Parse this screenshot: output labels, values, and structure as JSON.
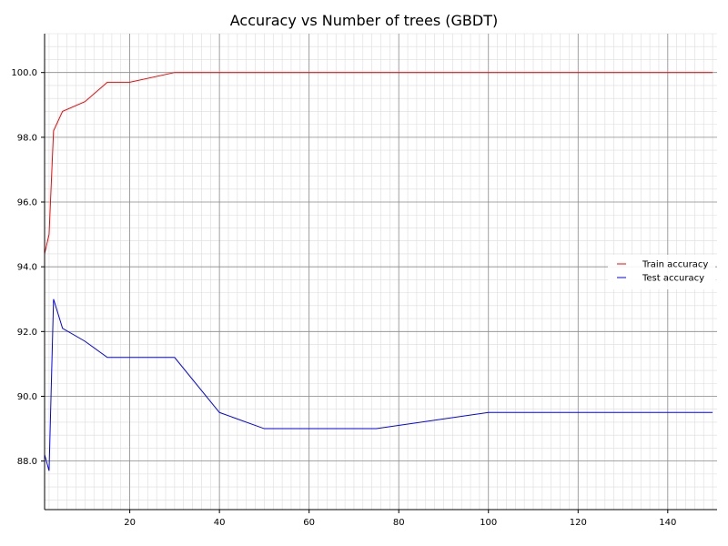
{
  "chart_data": {
    "type": "line",
    "title": "Accuracy vs Number of trees (GBDT)",
    "xlabel": "",
    "ylabel": "",
    "xlim": [
      1,
      151
    ],
    "ylim": [
      86.5,
      101.2
    ],
    "x_ticks": [
      20,
      40,
      60,
      80,
      100,
      120,
      140
    ],
    "y_ticks": [
      88.0,
      90.0,
      92.0,
      94.0,
      96.0,
      98.0,
      100.0
    ],
    "grid": "major-and-minor",
    "legend_position": "right",
    "series": [
      {
        "name": "Train accuracy",
        "color": "#ff0000",
        "x": [
          1,
          2,
          3,
          5,
          10,
          15,
          20,
          30,
          40,
          50,
          75,
          100,
          150
        ],
        "y": [
          94.4,
          95.0,
          98.2,
          98.8,
          99.1,
          99.7,
          99.7,
          100.0,
          100.0,
          100.0,
          100.0,
          100.0,
          100.0
        ]
      },
      {
        "name": "Test accuracy",
        "color": "#0000ff",
        "x": [
          1,
          2,
          3,
          5,
          10,
          15,
          20,
          30,
          40,
          50,
          75,
          100,
          150
        ],
        "y": [
          88.2,
          87.7,
          93.0,
          92.1,
          91.7,
          91.2,
          91.2,
          91.2,
          89.5,
          89.0,
          89.0,
          89.5,
          89.5
        ]
      }
    ]
  }
}
